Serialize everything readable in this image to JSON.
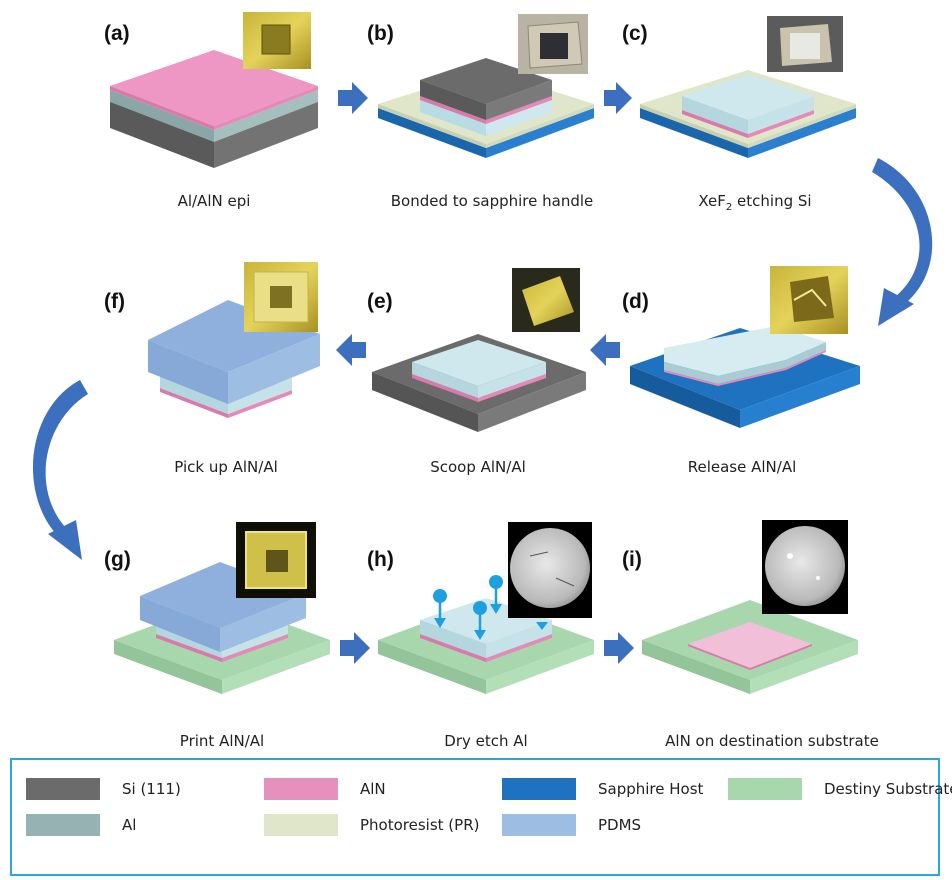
{
  "panels": [
    {
      "id": "a",
      "label": "(a)",
      "caption": "Al/AlN epi"
    },
    {
      "id": "b",
      "label": "(b)",
      "caption": "Bonded to sapphire handle"
    },
    {
      "id": "c",
      "label": "(c)",
      "caption_pre": "XeF",
      "caption_sub": "2",
      "caption_post": " etching Si"
    },
    {
      "id": "d",
      "label": "(d)",
      "caption": "Release AlN/Al"
    },
    {
      "id": "e",
      "label": "(e)",
      "caption": "Scoop AlN/Al"
    },
    {
      "id": "f",
      "label": "(f)",
      "caption": "Pick up AlN/Al"
    },
    {
      "id": "g",
      "label": "(g)",
      "caption": "Print AlN/Al"
    },
    {
      "id": "h",
      "label": "(h)",
      "caption": "Dry etch Al"
    },
    {
      "id": "i",
      "label": "(i)",
      "caption": "AlN on destination substrate"
    }
  ],
  "legend": [
    {
      "label": "Si (111)",
      "color": "#6b6b6b"
    },
    {
      "label": "AlN",
      "color": "#e690bd"
    },
    {
      "label": "Sapphire Host",
      "color": "#1f72bf"
    },
    {
      "label": "Destiny Substrates",
      "color": "#a8d7ae"
    },
    {
      "label": "Al",
      "color": "#97b2b2"
    },
    {
      "label": "Photoresist (PR)",
      "color": "#dfe6c9"
    },
    {
      "label": "PDMS",
      "color": "#9dbde3"
    }
  ],
  "colors": {
    "si": "#6b6b6b",
    "aln": "#e690bd",
    "sapphire": "#1f72bf",
    "destiny": "#a8d7ae",
    "al": "#97b2b2",
    "pr": "#dfe6c9",
    "pdms": "#9dbde3",
    "arrow": "#3d6fbf",
    "border": "#29a8e0"
  }
}
